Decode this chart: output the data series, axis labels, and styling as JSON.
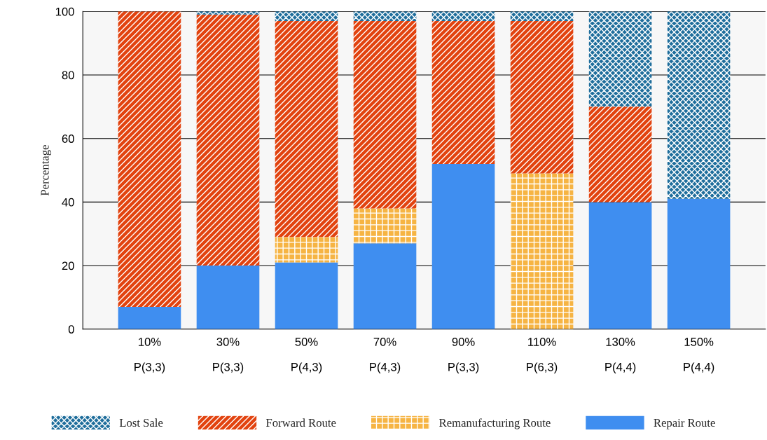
{
  "chart_data": {
    "type": "bar",
    "stacked": true,
    "ylabel": "Percentage",
    "categories": [
      "10%\n\nP(3,3)",
      "30%\n\nP(3,3)",
      "50%\n\nP(4,3)",
      "70%\n\nP(4,3)",
      "90%\n\nP(3,3)",
      "110%\n\nP(6,3)",
      "130%\n\nP(4,4)",
      "150%\n\nP(4,4)"
    ],
    "series": [
      {
        "name": "Repair Route",
        "color": "#3f8ef0",
        "values": [
          7,
          20,
          21,
          27,
          52,
          0,
          40,
          41
        ]
      },
      {
        "name": "Remanufacturing Route",
        "color": "#f6b443",
        "values": [
          0,
          0,
          8,
          11,
          0,
          49,
          0,
          0
        ]
      },
      {
        "name": "Forward Route",
        "color": "#e2430f",
        "values": [
          93,
          79,
          68,
          59,
          45,
          48,
          30,
          0
        ]
      },
      {
        "name": "Lost Sale",
        "color": "#1f6e9c",
        "values": [
          0,
          1,
          3,
          3,
          3,
          3,
          30,
          59
        ]
      }
    ],
    "ylim": [
      0,
      100
    ],
    "yticks": [
      0,
      20,
      40,
      60,
      80,
      100
    ],
    "grid": "y",
    "legend": "bottom"
  }
}
